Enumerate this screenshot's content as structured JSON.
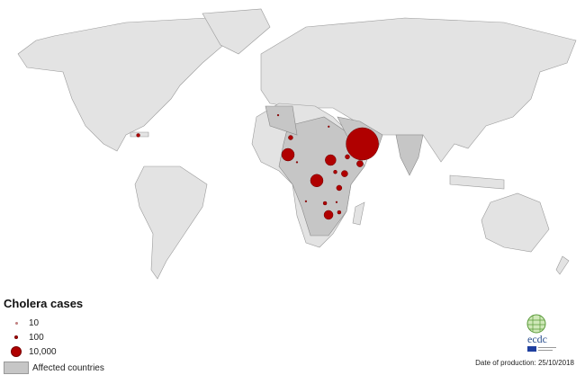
{
  "legend": {
    "title": "Cholera cases",
    "items": [
      {
        "label": "10",
        "cases": 10
      },
      {
        "label": "100",
        "cases": 100
      },
      {
        "label": "10,000",
        "cases": 10000
      }
    ],
    "affected_label": "Affected countries"
  },
  "colors": {
    "bubble": "#b00000",
    "affected": "#c6c6c6",
    "land": "#e3e3e3",
    "ocean": "#ffffff"
  },
  "markers": [
    {
      "lon": 48,
      "lat": 15,
      "cases": 130000
    },
    {
      "lon": -72,
      "lat": 19,
      "cases": 1500
    },
    {
      "lon": 9.6,
      "lat": 17.9,
      "cases": 2500
    },
    {
      "lon": 8.2,
      "lat": 10,
      "cases": 19600
    },
    {
      "lon": 13,
      "lat": 6.5,
      "cases": 100
    },
    {
      "lon": 30,
      "lat": 23,
      "cases": 100
    },
    {
      "lon": 31,
      "lat": 7.5,
      "cases": 14400
    },
    {
      "lon": 40,
      "lat": 9,
      "cases": 2500
    },
    {
      "lon": 46.7,
      "lat": 5.8,
      "cases": 5000
    },
    {
      "lon": 33.5,
      "lat": 2,
      "cases": 1600
    },
    {
      "lon": 38.5,
      "lat": 1.2,
      "cases": 5000
    },
    {
      "lon": 23.6,
      "lat": -2,
      "cases": 19600
    },
    {
      "lon": 35.6,
      "lat": -5.4,
      "cases": 3600
    },
    {
      "lon": 17.8,
      "lat": -11.6,
      "cases": 100
    },
    {
      "lon": 28,
      "lat": -12.5,
      "cases": 1600
    },
    {
      "lon": 34.2,
      "lat": -12,
      "cases": 100
    },
    {
      "lon": 29.9,
      "lat": -17.9,
      "cases": 10000
    },
    {
      "lon": 35.6,
      "lat": -16.7,
      "cases": 1600
    },
    {
      "lon": 2.9,
      "lat": 28.3,
      "cases": 100
    }
  ],
  "logo": {
    "text": "ecdc"
  },
  "footer": {
    "date": "Date of production: 25/10/2018"
  }
}
